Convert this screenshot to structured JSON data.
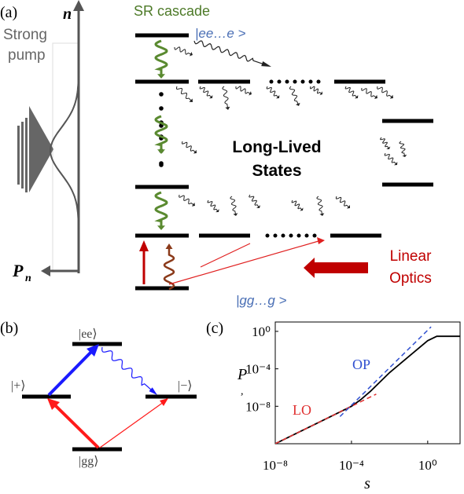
{
  "panel_a": {
    "label": "(a)",
    "axis_n": "n",
    "pump": [
      "Strong",
      "pump"
    ],
    "axis_p": "P",
    "axis_p_sub": "n",
    "cascade": "SR cascade",
    "top_state": "|ee…e >",
    "long_lived": [
      "Long-Lived",
      "States"
    ],
    "ground_state": "|gg…g >",
    "linear_optics": [
      "Linear",
      "Optics"
    ]
  },
  "panel_b": {
    "label": "(b)",
    "ee": "|ee⟩",
    "plus": "|+⟩",
    "minus": "|−⟩",
    "gg": "|gg⟩"
  },
  "chart_data": {
    "type": "line",
    "label": "(c)",
    "xlabel": "s",
    "ylabel": "P",
    "ylabel_sub": ",",
    "xscale": "log",
    "yscale": "log",
    "xlim": [
      1e-08,
      50
    ],
    "ylim": [
      1e-12,
      10
    ],
    "xticks": [
      {
        "value": 1e-08,
        "label": "10⁻⁸"
      },
      {
        "value": 0.0001,
        "label": "10⁻⁴"
      },
      {
        "value": 1,
        "label": "10⁰"
      }
    ],
    "yticks": [
      {
        "value": 1e-08,
        "label": "10⁻⁸"
      },
      {
        "value": 0.0001,
        "label": "10⁻⁴"
      },
      {
        "value": 1,
        "label": "10⁰"
      }
    ],
    "series": [
      {
        "color": "#000000",
        "dash": false,
        "x": [
          1e-08,
          1e-06,
          0.0001,
          0.0003,
          0.001,
          0.01,
          0.1,
          1,
          3,
          50
        ],
        "values": [
          1e-12,
          1e-10,
          1e-08,
          5e-08,
          4e-07,
          4e-05,
          0.002,
          0.1,
          0.3,
          0.3
        ]
      },
      {
        "color": "#e03030",
        "dash": true,
        "x": [
          1e-08,
          0.002
        ],
        "values": [
          1e-12,
          2e-07
        ]
      },
      {
        "color": "#3050d0",
        "dash": true,
        "x": [
          2.5e-05,
          1.5
        ],
        "values": [
          8e-10,
          3
        ]
      }
    ],
    "annotations": [
      {
        "text": "LO",
        "color": "#e03030"
      },
      {
        "text": "OP",
        "color": "#3050d0"
      }
    ]
  }
}
